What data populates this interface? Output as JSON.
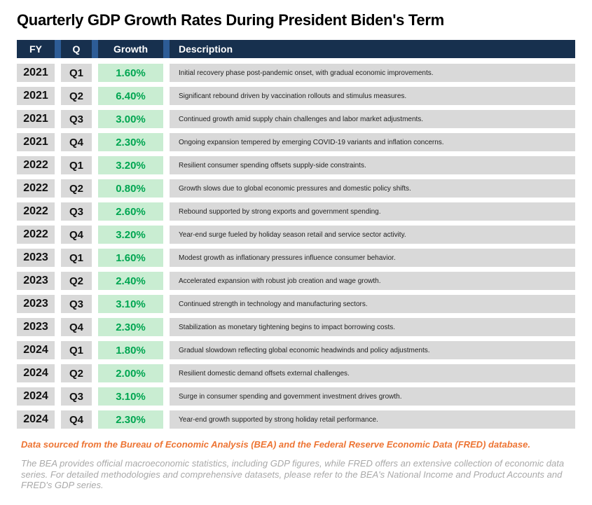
{
  "title": "Quarterly GDP Growth Rates During President Biden's Term",
  "table": {
    "headers": {
      "fy": "FY",
      "q": "Q",
      "growth": "Growth",
      "description": "Description"
    },
    "rows": [
      {
        "fy": "2021",
        "q": "Q1",
        "growth": "1.60%",
        "description": "Initial recovery phase post-pandemic onset, with gradual economic improvements."
      },
      {
        "fy": "2021",
        "q": "Q2",
        "growth": "6.40%",
        "description": "Significant rebound driven by vaccination rollouts and stimulus measures."
      },
      {
        "fy": "2021",
        "q": "Q3",
        "growth": "3.00%",
        "description": "Continued growth amid supply chain challenges and labor market adjustments."
      },
      {
        "fy": "2021",
        "q": "Q4",
        "growth": "2.30%",
        "description": "Ongoing expansion tempered by emerging COVID-19 variants and inflation concerns."
      },
      {
        "fy": "2022",
        "q": "Q1",
        "growth": "3.20%",
        "description": "Resilient consumer spending offsets supply-side constraints."
      },
      {
        "fy": "2022",
        "q": "Q2",
        "growth": "0.80%",
        "description": "Growth slows due to global economic pressures and domestic policy shifts."
      },
      {
        "fy": "2022",
        "q": "Q3",
        "growth": "2.60%",
        "description": "Rebound supported by strong exports and government spending."
      },
      {
        "fy": "2022",
        "q": "Q4",
        "growth": "3.20%",
        "description": "Year-end surge fueled by holiday season retail and service sector activity."
      },
      {
        "fy": "2023",
        "q": "Q1",
        "growth": "1.60%",
        "description": "Modest growth as inflationary pressures influence consumer behavior."
      },
      {
        "fy": "2023",
        "q": "Q2",
        "growth": "2.40%",
        "description": "Accelerated expansion with robust job creation and wage growth."
      },
      {
        "fy": "2023",
        "q": "Q3",
        "growth": "3.10%",
        "description": "Continued strength in technology and manufacturing sectors."
      },
      {
        "fy": "2023",
        "q": "Q4",
        "growth": "2.30%",
        "description": "Stabilization as monetary tightening begins to impact borrowing costs."
      },
      {
        "fy": "2024",
        "q": "Q1",
        "growth": "1.80%",
        "description": "Gradual slowdown reflecting global economic headwinds and policy adjustments."
      },
      {
        "fy": "2024",
        "q": "Q2",
        "growth": "2.00%",
        "description": "Resilient domestic demand offsets external challenges."
      },
      {
        "fy": "2024",
        "q": "Q3",
        "growth": "3.10%",
        "description": "Surge in consumer spending and government investment drives growth."
      },
      {
        "fy": "2024",
        "q": "Q4",
        "growth": "2.30%",
        "description": "Year-end growth supported by strong holiday retail performance."
      }
    ]
  },
  "footer": {
    "source_line": "Data sourced from the Bureau of Economic Analysis (BEA) and the Federal Reserve Economic Data (FRED) database.",
    "note": "The BEA provides official macroeconomic statistics, including GDP figures, while FRED offers an extensive collection of economic data series. For detailed methodologies and comprehensive datasets, please refer to the BEA's National Income and Product Accounts and FRED's GDP series."
  },
  "colors": {
    "header_bg": "#17304e",
    "header_divider": "#2d5c96",
    "row_bg": "#d9d9d9",
    "growth_bg": "#c9edd2",
    "growth_text": "#00a651",
    "source_text": "#ed7433",
    "note_text": "#a9a9a9"
  }
}
